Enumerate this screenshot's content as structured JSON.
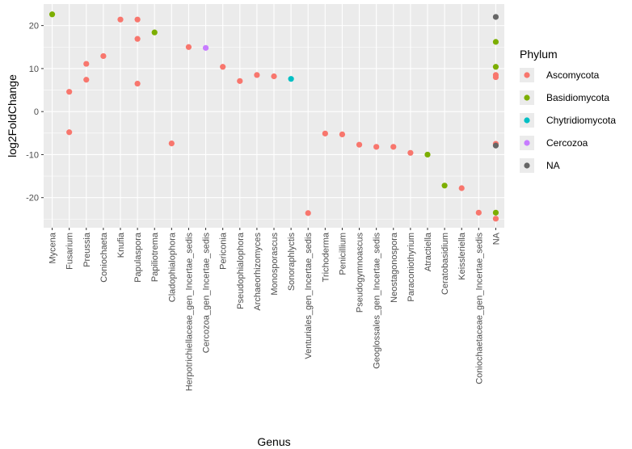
{
  "chart_data": {
    "type": "scatter",
    "xlabel": "Genus",
    "ylabel": "log2FoldChange",
    "ylim": [
      -27,
      25
    ],
    "yticks": [
      -20,
      -10,
      0,
      10,
      20
    ],
    "grid": true,
    "categories": [
      "Mycena",
      "Fusarium",
      "Preussia",
      "Coniochaeta",
      "Knufia",
      "Papulaspora",
      "Papiliotrema",
      "Cladophialophora",
      "Herpotrichiellaceae_gen_Incertae_sedis",
      "Cercozoa_gen_Incertae_sedis",
      "Periconia",
      "Pseudophialophora",
      "Archaeorhizomyces",
      "Monosporascus",
      "Sonoraphlyctis",
      "Venturiales_gen_Incertae_sedis",
      "Trichoderma",
      "Penicillium",
      "Pseudogymnoascus",
      "Geoglossales_gen_Incertae_sedis",
      "Neostagonospora",
      "Paraconiothyrium",
      "Atractiella",
      "Ceratobasidium",
      "Keissleriella",
      "Coniochaetaceae_gen_Incertae_sedis",
      "NA"
    ],
    "legend": {
      "title": "Phylum",
      "position": "right",
      "entries": [
        {
          "name": "Ascomycota",
          "color": "#F8766D"
        },
        {
          "name": "Basidiomycota",
          "color": "#7CAE00"
        },
        {
          "name": "Chytridiomycota",
          "color": "#00BFC4"
        },
        {
          "name": "Cercozoa",
          "color": "#C77CFF"
        },
        {
          "name": "NA",
          "color": "#666666"
        }
      ]
    },
    "points": [
      {
        "genus": "Mycena",
        "y": 22.6,
        "phylum": "Basidiomycota"
      },
      {
        "genus": "Fusarium",
        "y": 4.6,
        "phylum": "Ascomycota"
      },
      {
        "genus": "Fusarium",
        "y": -4.8,
        "phylum": "Ascomycota"
      },
      {
        "genus": "Preussia",
        "y": 11.1,
        "phylum": "Ascomycota"
      },
      {
        "genus": "Preussia",
        "y": 7.4,
        "phylum": "Ascomycota"
      },
      {
        "genus": "Coniochaeta",
        "y": 12.9,
        "phylum": "Ascomycota"
      },
      {
        "genus": "Knufia",
        "y": 21.4,
        "phylum": "Ascomycota"
      },
      {
        "genus": "Papulaspora",
        "y": 21.4,
        "phylum": "Ascomycota"
      },
      {
        "genus": "Papulaspora",
        "y": 16.9,
        "phylum": "Ascomycota"
      },
      {
        "genus": "Papulaspora",
        "y": 6.5,
        "phylum": "Ascomycota"
      },
      {
        "genus": "Papiliotrema",
        "y": 18.4,
        "phylum": "Basidiomycota"
      },
      {
        "genus": "Cladophialophora",
        "y": -7.4,
        "phylum": "Ascomycota"
      },
      {
        "genus": "Herpotrichiellaceae_gen_Incertae_sedis",
        "y": 15.0,
        "phylum": "Ascomycota"
      },
      {
        "genus": "Cercozoa_gen_Incertae_sedis",
        "y": 14.8,
        "phylum": "Cercozoa"
      },
      {
        "genus": "Periconia",
        "y": 10.4,
        "phylum": "Ascomycota"
      },
      {
        "genus": "Pseudophialophora",
        "y": 7.1,
        "phylum": "Ascomycota"
      },
      {
        "genus": "Archaeorhizomyces",
        "y": 8.5,
        "phylum": "Ascomycota"
      },
      {
        "genus": "Monosporascus",
        "y": 8.2,
        "phylum": "Ascomycota"
      },
      {
        "genus": "Sonoraphlyctis",
        "y": 7.6,
        "phylum": "Chytridiomycota"
      },
      {
        "genus": "Venturiales_gen_Incertae_sedis",
        "y": -23.6,
        "phylum": "Ascomycota"
      },
      {
        "genus": "Trichoderma",
        "y": -5.1,
        "phylum": "Ascomycota"
      },
      {
        "genus": "Penicillium",
        "y": -5.3,
        "phylum": "Ascomycota"
      },
      {
        "genus": "Pseudogymnoascus",
        "y": -7.7,
        "phylum": "Ascomycota"
      },
      {
        "genus": "Geoglossales_gen_Incertae_sedis",
        "y": -8.2,
        "phylum": "Ascomycota"
      },
      {
        "genus": "Neostagonospora",
        "y": -8.2,
        "phylum": "Ascomycota"
      },
      {
        "genus": "Paraconiothyrium",
        "y": -9.6,
        "phylum": "Ascomycota"
      },
      {
        "genus": "Atractiella",
        "y": -10.0,
        "phylum": "Basidiomycota"
      },
      {
        "genus": "Ceratobasidium",
        "y": -17.2,
        "phylum": "Basidiomycota"
      },
      {
        "genus": "Keissleriella",
        "y": -17.8,
        "phylum": "Ascomycota"
      },
      {
        "genus": "Coniochaetaceae_gen_Incertae_sedis",
        "y": -23.5,
        "phylum": "Ascomycota"
      },
      {
        "genus": "NA",
        "y": 22.0,
        "phylum": "NA"
      },
      {
        "genus": "NA",
        "y": 16.2,
        "phylum": "Basidiomycota"
      },
      {
        "genus": "NA",
        "y": 10.4,
        "phylum": "Basidiomycota"
      },
      {
        "genus": "NA",
        "y": 8.5,
        "phylum": "Ascomycota"
      },
      {
        "genus": "NA",
        "y": 8.0,
        "phylum": "Ascomycota"
      },
      {
        "genus": "NA",
        "y": -7.5,
        "phylum": "Ascomycota"
      },
      {
        "genus": "NA",
        "y": -7.9,
        "phylum": "NA"
      },
      {
        "genus": "NA",
        "y": -23.5,
        "phylum": "Basidiomycota"
      },
      {
        "genus": "NA",
        "y": -24.9,
        "phylum": "Ascomycota"
      }
    ]
  }
}
